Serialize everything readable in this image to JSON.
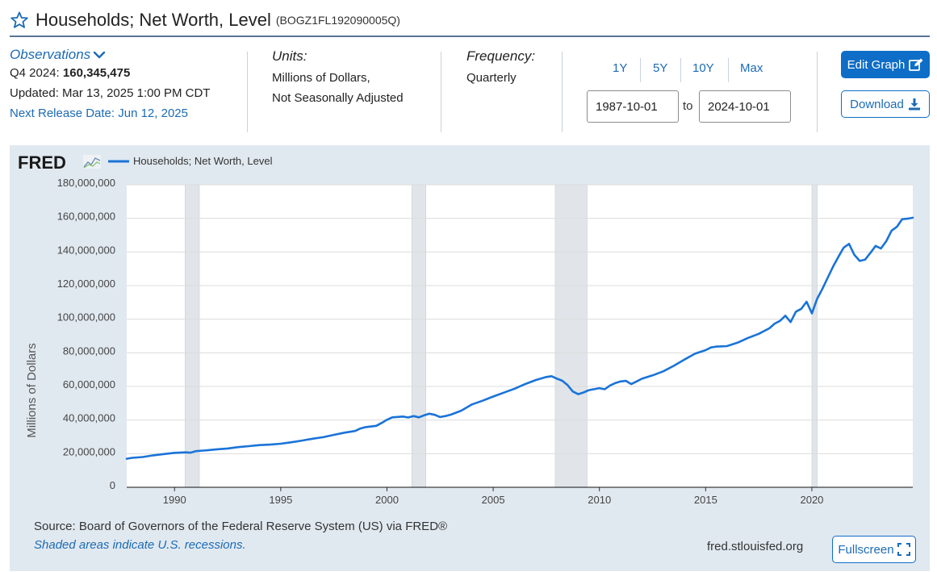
{
  "header": {
    "title": "Households; Net Worth, Level",
    "series_id": "(BOGZ1FL192090005Q)"
  },
  "observations": {
    "label": "Observations",
    "period": "Q4 2024:",
    "value": "160,345,475",
    "updated": "Updated: Mar 13, 2025 1:00 PM CDT",
    "next_release": "Next Release Date: Jun 12, 2025"
  },
  "units": {
    "heading": "Units:",
    "line1": "Millions of Dollars,",
    "line2": "Not Seasonally Adjusted"
  },
  "frequency": {
    "heading": "Frequency:",
    "value": "Quarterly"
  },
  "range": {
    "buttons": [
      "1Y",
      "5Y",
      "10Y",
      "Max"
    ],
    "start": "1987-10-01",
    "to": "to",
    "end": "2024-10-01"
  },
  "actions": {
    "edit_graph": "Edit Graph",
    "download": "Download",
    "fullscreen": "Fullscreen"
  },
  "footer": {
    "source": "Source: Board of Governors of the Federal Reserve System (US) via FRED®",
    "shaded": "Shaded areas indicate U.S. recessions.",
    "site": "fred.stlouisfed.org"
  },
  "colors": {
    "accent": "#0e6dc7",
    "series": "#1a73d8",
    "panel": "#e1e9f0",
    "recession": "#e1e5e9"
  },
  "chart_data": {
    "type": "line",
    "logo": "FRED",
    "legend_label": "Households; Net Worth, Level",
    "ylabel": "Millions of Dollars",
    "xlim": [
      1987.75,
      2024.75
    ],
    "ylim": [
      0,
      180000000
    ],
    "yticks": [
      0,
      20000000,
      40000000,
      60000000,
      80000000,
      100000000,
      120000000,
      140000000,
      160000000,
      180000000
    ],
    "ytick_labels": [
      "0",
      "20,000,000",
      "40,000,000",
      "60,000,000",
      "80,000,000",
      "100,000,000",
      "120,000,000",
      "140,000,000",
      "160,000,000",
      "180,000,000"
    ],
    "xticks": [
      1990,
      1995,
      2000,
      2005,
      2010,
      2015,
      2020
    ],
    "xtick_labels": [
      "1990",
      "1995",
      "2000",
      "2005",
      "2010",
      "2015",
      "2020"
    ],
    "grid": "horizontal",
    "legend_position": "top-left",
    "recessions": [
      [
        1990.5,
        1991.17
      ],
      [
        2001.17,
        2001.83
      ],
      [
        2007.92,
        2009.42
      ],
      [
        2020.0,
        2020.25
      ]
    ],
    "series": [
      {
        "name": "Households; Net Worth, Level",
        "x": [
          1987.75,
          1988.0,
          1988.5,
          1989.0,
          1989.5,
          1990.0,
          1990.5,
          1990.75,
          1991.0,
          1991.5,
          1992.0,
          1992.5,
          1993.0,
          1993.5,
          1994.0,
          1994.5,
          1995.0,
          1995.5,
          1996.0,
          1996.5,
          1997.0,
          1997.5,
          1998.0,
          1998.5,
          1998.75,
          1999.0,
          1999.5,
          1999.75,
          2000.0,
          2000.25,
          2000.75,
          2001.0,
          2001.25,
          2001.5,
          2001.75,
          2002.0,
          2002.25,
          2002.5,
          2002.75,
          2003.0,
          2003.5,
          2004.0,
          2004.5,
          2005.0,
          2005.5,
          2006.0,
          2006.5,
          2007.0,
          2007.5,
          2007.75,
          2008.0,
          2008.25,
          2008.5,
          2008.75,
          2009.0,
          2009.25,
          2009.5,
          2010.0,
          2010.25,
          2010.5,
          2010.75,
          2011.0,
          2011.25,
          2011.5,
          2011.75,
          2012.0,
          2012.5,
          2013.0,
          2013.5,
          2014.0,
          2014.5,
          2015.0,
          2015.25,
          2015.5,
          2016.0,
          2016.5,
          2017.0,
          2017.5,
          2018.0,
          2018.25,
          2018.5,
          2018.75,
          2019.0,
          2019.25,
          2019.5,
          2019.75,
          2020.0,
          2020.25,
          2020.5,
          2020.75,
          2021.0,
          2021.25,
          2021.5,
          2021.75,
          2022.0,
          2022.25,
          2022.5,
          2022.75,
          2023.0,
          2023.25,
          2023.5,
          2023.75,
          2024.0,
          2024.25,
          2024.5,
          2024.75
        ],
        "values": [
          17000000,
          17500000,
          18000000,
          19000000,
          19800000,
          20500000,
          20800000,
          20600000,
          21500000,
          22000000,
          22600000,
          23100000,
          23900000,
          24500000,
          25100000,
          25400000,
          25900000,
          26800000,
          27800000,
          28900000,
          29800000,
          31200000,
          32500000,
          33500000,
          35000000,
          35800000,
          36600000,
          38300000,
          40200000,
          41600000,
          42100000,
          41500000,
          42400000,
          41600000,
          42800000,
          43800000,
          43100000,
          41800000,
          42400000,
          43200000,
          45600000,
          49300000,
          51500000,
          54000000,
          56300000,
          58600000,
          61400000,
          63800000,
          65600000,
          66100000,
          64600000,
          63400000,
          60800000,
          57000000,
          55400000,
          56400000,
          57800000,
          59000000,
          58300000,
          60600000,
          62000000,
          63000000,
          63300000,
          61400000,
          63000000,
          64600000,
          66600000,
          69000000,
          72300000,
          76000000,
          79500000,
          81600000,
          83200000,
          83700000,
          84000000,
          86000000,
          88900000,
          91300000,
          94600000,
          97400000,
          99000000,
          102100000,
          98300000,
          104500000,
          106200000,
          110400000,
          103500000,
          112200000,
          118200000,
          124800000,
          131400000,
          137200000,
          142600000,
          144800000,
          138300000,
          134700000,
          135400000,
          139400000,
          143600000,
          142100000,
          146400000,
          152700000,
          155000000,
          159500000,
          159800000,
          160345475
        ]
      }
    ]
  }
}
